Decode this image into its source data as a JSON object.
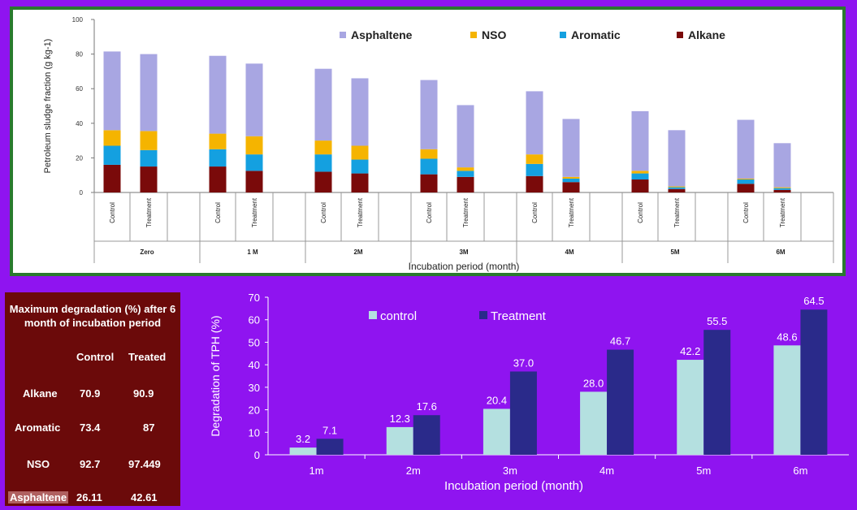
{
  "chart_data": [
    {
      "type": "bar",
      "stacked": true,
      "ylabel": "Petroleum sludge fraction (g kg-1)",
      "xlabel": "Incubation period (month)",
      "ylim": [
        0,
        100
      ],
      "yticks": [
        0,
        20,
        40,
        60,
        80,
        100
      ],
      "groups": [
        "Zero",
        "1 M",
        "2M",
        "3M",
        "4M",
        "5M",
        "6M"
      ],
      "bar_labels": [
        "Control",
        "Treatment"
      ],
      "legend": [
        "Asphaltene",
        "NSO",
        "Aromatic",
        "Alkane"
      ],
      "legend_placement": "top",
      "colors": {
        "Alkane": "#7a0a0a",
        "Aromatic": "#14a0e0",
        "NSO": "#f5b400",
        "Asphaltene": "#a8a6e2"
      },
      "series": [
        {
          "name": "Alkane",
          "values": [
            [
              16,
              15
            ],
            [
              15,
              12.5
            ],
            [
              12,
              11
            ],
            [
              10.5,
              9
            ],
            [
              9.5,
              6
            ],
            [
              7.5,
              2
            ],
            [
              5,
              1.5
            ]
          ]
        },
        {
          "name": "Aromatic",
          "values": [
            [
              11,
              9.5
            ],
            [
              10,
              9.5
            ],
            [
              10,
              8
            ],
            [
              9,
              3.5
            ],
            [
              7,
              2
            ],
            [
              3.5,
              1
            ],
            [
              2.5,
              1
            ]
          ]
        },
        {
          "name": "NSO",
          "values": [
            [
              9,
              11
            ],
            [
              9,
              10.5
            ],
            [
              8,
              8
            ],
            [
              5.5,
              2
            ],
            [
              5.5,
              1
            ],
            [
              1.5,
              0.5
            ],
            [
              0.5,
              0.5
            ]
          ]
        },
        {
          "name": "Asphaltene",
          "values": [
            [
              45.5,
              44.5
            ],
            [
              45,
              42
            ],
            [
              41.5,
              39
            ],
            [
              40,
              36
            ],
            [
              36.5,
              33.5
            ],
            [
              34.5,
              32.5
            ],
            [
              34,
              25.5
            ]
          ]
        }
      ]
    },
    {
      "type": "bar",
      "ylabel": "Degradation of TPH (%)",
      "xlabel": "Incubation period (month)",
      "ylim": [
        0,
        70
      ],
      "yticks": [
        0,
        10,
        20,
        30,
        40,
        50,
        60,
        70
      ],
      "categories": [
        "1m",
        "2m",
        "3m",
        "4m",
        "5m",
        "6m"
      ],
      "legend_placement": "top-left",
      "series": [
        {
          "name": "control",
          "color": "#b4e0e0",
          "values": [
            3.2,
            12.3,
            20.4,
            28.0,
            42.2,
            48.6
          ],
          "labels": [
            "3.2",
            "12.3",
            "20.4",
            "28.0",
            "42.2",
            "48.6"
          ]
        },
        {
          "name": "Treatment",
          "color": "#2a2a8a",
          "values": [
            7.1,
            17.6,
            37.0,
            46.7,
            55.5,
            64.5
          ],
          "labels": [
            "7.1",
            "17.6",
            "37.0",
            "46.7",
            "55.5",
            "64.5"
          ]
        }
      ]
    }
  ],
  "degradation_table": {
    "title": "Maximum degradation (%) after 6 month of incubation period",
    "headers": [
      "Control",
      "Treated"
    ],
    "rows": [
      {
        "label": "Alkane",
        "control": "70.9",
        "treated": "90.9"
      },
      {
        "label": "Aromatic",
        "control": "73.4",
        "treated": "87"
      },
      {
        "label": "NSO",
        "control": "92.7",
        "treated": "97.449"
      },
      {
        "label": "Asphaltene",
        "control": "26.11",
        "treated": "42.61"
      }
    ]
  }
}
